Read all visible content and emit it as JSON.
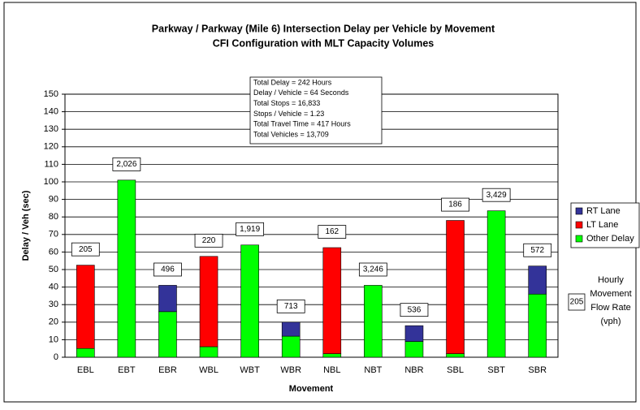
{
  "chart_data": {
    "type": "stacked_bar",
    "title": "Parkway / Parkway (Mile 6) Intersection Delay per Vehicle by Movement",
    "subtitle": "CFI Configuration with MLT Capacity Volumes",
    "y_label": "Delay / Veh (sec)",
    "x_label": "Movement",
    "categories": [
      "EBL",
      "EBT",
      "EBR",
      "WBL",
      "WBT",
      "WBR",
      "NBL",
      "NBT",
      "NBR",
      "SBL",
      "SBT",
      "SBR"
    ],
    "series": [
      {
        "name": "Other Delay",
        "color": "#00ff00",
        "values": [
          5,
          101,
          26,
          6,
          64,
          12,
          2,
          41,
          9,
          2,
          83.5,
          36
        ]
      },
      {
        "name": "LT Lane",
        "color": "#ff0000",
        "values": [
          47.5,
          null,
          null,
          51.5,
          null,
          null,
          60.5,
          null,
          null,
          76,
          null,
          null
        ]
      },
      {
        "name": "RT Lane",
        "color": "#333399",
        "values": [
          null,
          null,
          15,
          null,
          null,
          8,
          null,
          null,
          9,
          null,
          null,
          16
        ]
      }
    ],
    "flow_rate_labels": [
      "205",
      "2,026",
      "496",
      "220",
      "1,919",
      "713",
      "162",
      "3,246",
      "536",
      "186",
      "3,429",
      "572"
    ],
    "ylim": [
      0,
      150
    ],
    "yticks": [
      0,
      10,
      20,
      30,
      40,
      50,
      60,
      70,
      80,
      90,
      100,
      110,
      120,
      130,
      140,
      150
    ],
    "grid": true,
    "stats": [
      "Total Delay = 242 Hours",
      "Delay / Vehicle = 64 Seconds",
      "Total Stops = 16,833",
      "Stops / Vehicle = 1.23",
      "Total Travel Time = 417 Hours",
      "Total Vehicles = 13,709"
    ],
    "legend_note": {
      "sample": "205",
      "lines": [
        "Hourly",
        "Movement",
        "Flow Rate",
        "(vph)"
      ]
    }
  }
}
